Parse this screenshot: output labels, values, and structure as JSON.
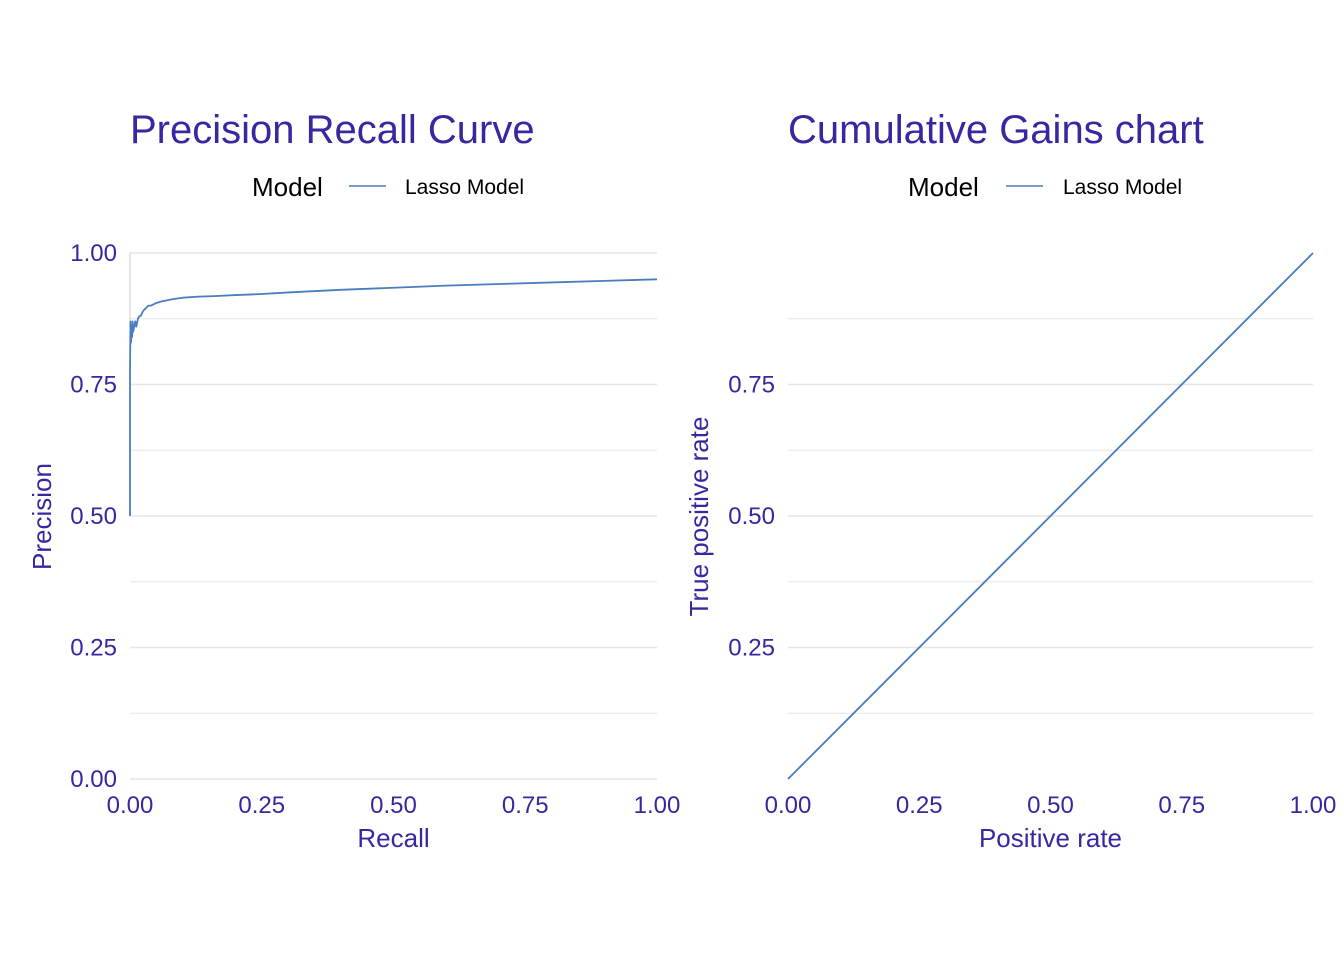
{
  "chart_data": [
    {
      "type": "line",
      "title": "Precision Recall Curve",
      "xlabel": "Recall",
      "ylabel": "Precision",
      "xlim": [
        0,
        1
      ],
      "ylim": [
        0,
        1
      ],
      "x_ticks": [
        "0.00",
        "0.25",
        "0.50",
        "0.75",
        "1.00"
      ],
      "y_ticks": [
        "0.00",
        "0.25",
        "0.50",
        "0.75",
        "1.00"
      ],
      "grid": true,
      "legend": {
        "title": "Model",
        "position": "top",
        "entries": [
          "Lasso Model"
        ]
      },
      "series": [
        {
          "name": "Lasso Model",
          "x": [
            0.0,
            0.0,
            0.001,
            0.002,
            0.003,
            0.004,
            0.005,
            0.006,
            0.008,
            0.01,
            0.012,
            0.015,
            0.018,
            0.02,
            0.025,
            0.03,
            0.035,
            0.04,
            0.05,
            0.06,
            0.07,
            0.08,
            0.1,
            0.13,
            0.16,
            0.2,
            0.25,
            0.3,
            0.4,
            0.5,
            0.6,
            0.7,
            0.8,
            0.9,
            1.0
          ],
          "y": [
            0.5,
            0.78,
            0.87,
            0.83,
            0.86,
            0.84,
            0.87,
            0.85,
            0.86,
            0.87,
            0.86,
            0.875,
            0.88,
            0.88,
            0.89,
            0.895,
            0.9,
            0.9,
            0.905,
            0.908,
            0.91,
            0.912,
            0.915,
            0.917,
            0.918,
            0.92,
            0.922,
            0.925,
            0.93,
            0.934,
            0.938,
            0.941,
            0.944,
            0.947,
            0.95
          ]
        }
      ],
      "colors": {
        "series": "#4a7cc0",
        "text": "#3a26a0",
        "title": "#3a26a0",
        "grid": "#e6e6e6"
      }
    },
    {
      "type": "line",
      "title": "Cumulative Gains chart",
      "xlabel": "Positive rate",
      "ylabel": "True positive rate",
      "xlim": [
        0,
        1
      ],
      "ylim": [
        0,
        1
      ],
      "x_ticks": [
        "0.00",
        "0.25",
        "0.50",
        "0.75",
        "1.00"
      ],
      "y_ticks": [
        "0.25",
        "0.50",
        "0.75"
      ],
      "grid": true,
      "legend": {
        "title": "Model",
        "position": "top",
        "entries": [
          "Lasso Model"
        ]
      },
      "series": [
        {
          "name": "Lasso Model",
          "x": [
            0,
            1
          ],
          "y": [
            0,
            1
          ]
        }
      ],
      "colors": {
        "series": "#4a7cc0",
        "text": "#3a26a0",
        "title": "#3a26a0",
        "grid": "#e6e6e6"
      }
    }
  ]
}
